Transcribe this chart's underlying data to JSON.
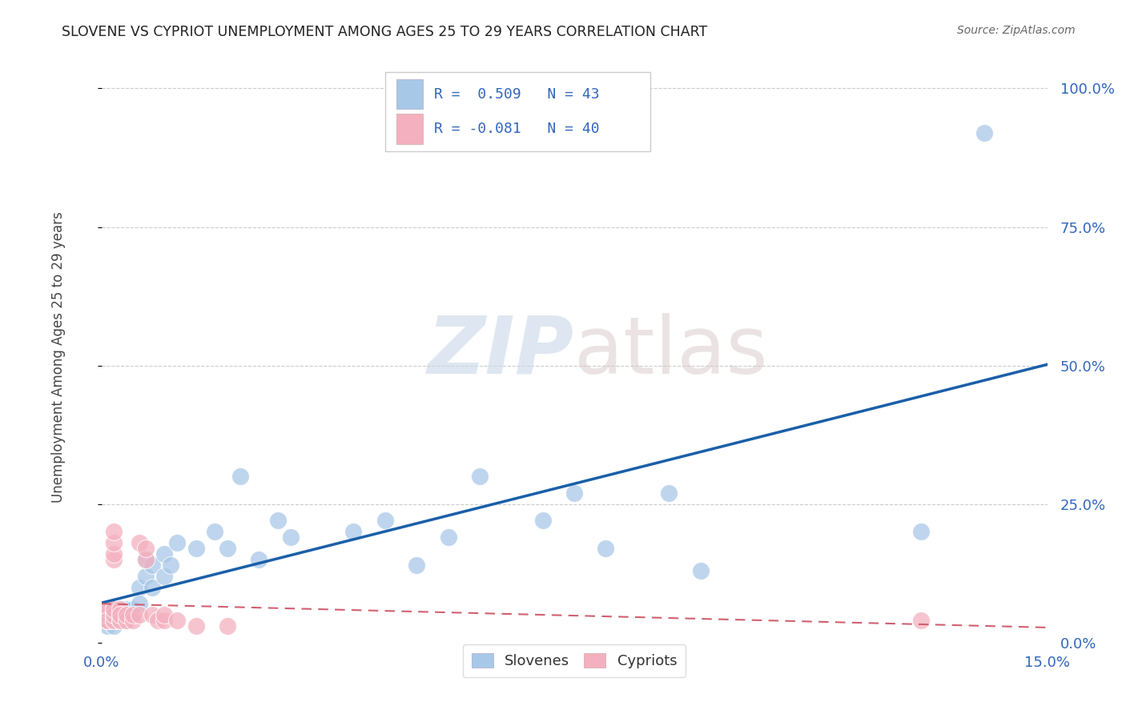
{
  "title": "SLOVENE VS CYPRIOT UNEMPLOYMENT AMONG AGES 25 TO 29 YEARS CORRELATION CHART",
  "source": "Source: ZipAtlas.com",
  "ylabel": "Unemployment Among Ages 25 to 29 years",
  "xlim": [
    0.0,
    0.15
  ],
  "ylim": [
    0.0,
    1.05
  ],
  "legend_entry1": "R =  0.509   N = 43",
  "legend_entry2": "R = -0.081   N = 40",
  "slovene_color": "#a8c8e8",
  "cypriot_color": "#f4b0be",
  "slovene_line_color": "#1a5fa8",
  "cypriot_line_color": "#d06070",
  "slovene_x": [
    0.001,
    0.001,
    0.002,
    0.002,
    0.002,
    0.003,
    0.003,
    0.003,
    0.003,
    0.004,
    0.004,
    0.004,
    0.005,
    0.005,
    0.006,
    0.006,
    0.007,
    0.007,
    0.008,
    0.008,
    0.01,
    0.01,
    0.011,
    0.012,
    0.015,
    0.018,
    0.02,
    0.022,
    0.025,
    0.028,
    0.03,
    0.04,
    0.045,
    0.05,
    0.055,
    0.06,
    0.07,
    0.075,
    0.08,
    0.09,
    0.095,
    0.13,
    0.14
  ],
  "slovene_y": [
    0.03,
    0.04,
    0.03,
    0.05,
    0.04,
    0.05,
    0.06,
    0.04,
    0.05,
    0.06,
    0.05,
    0.04,
    0.06,
    0.05,
    0.1,
    0.07,
    0.12,
    0.15,
    0.1,
    0.14,
    0.12,
    0.16,
    0.14,
    0.18,
    0.17,
    0.2,
    0.17,
    0.3,
    0.15,
    0.22,
    0.19,
    0.2,
    0.22,
    0.14,
    0.19,
    0.3,
    0.22,
    0.27,
    0.17,
    0.27,
    0.13,
    0.2,
    0.92
  ],
  "cypriot_x": [
    0.001,
    0.001,
    0.001,
    0.001,
    0.001,
    0.001,
    0.001,
    0.001,
    0.002,
    0.002,
    0.002,
    0.002,
    0.002,
    0.002,
    0.002,
    0.002,
    0.002,
    0.002,
    0.002,
    0.003,
    0.003,
    0.003,
    0.003,
    0.003,
    0.004,
    0.004,
    0.005,
    0.005,
    0.006,
    0.006,
    0.007,
    0.007,
    0.008,
    0.009,
    0.01,
    0.01,
    0.012,
    0.015,
    0.02,
    0.13
  ],
  "cypriot_y": [
    0.04,
    0.04,
    0.05,
    0.05,
    0.05,
    0.06,
    0.06,
    0.04,
    0.04,
    0.05,
    0.05,
    0.06,
    0.04,
    0.05,
    0.06,
    0.15,
    0.16,
    0.18,
    0.2,
    0.04,
    0.05,
    0.06,
    0.04,
    0.05,
    0.04,
    0.05,
    0.04,
    0.05,
    0.05,
    0.18,
    0.15,
    0.17,
    0.05,
    0.04,
    0.04,
    0.05,
    0.04,
    0.03,
    0.03,
    0.04
  ],
  "yticks": [
    0.0,
    0.25,
    0.5,
    0.75,
    1.0
  ],
  "ytick_labels": [
    "0.0%",
    "25.0%",
    "50.0%",
    "75.0%",
    "100.0%"
  ],
  "xtick_labels_left": [
    "0.0%"
  ],
  "xtick_labels_right": [
    "15.0%"
  ],
  "bottom_legend": [
    "Slovenes",
    "Cypriots"
  ],
  "watermark_zip": "ZIP",
  "watermark_atlas": "atlas"
}
